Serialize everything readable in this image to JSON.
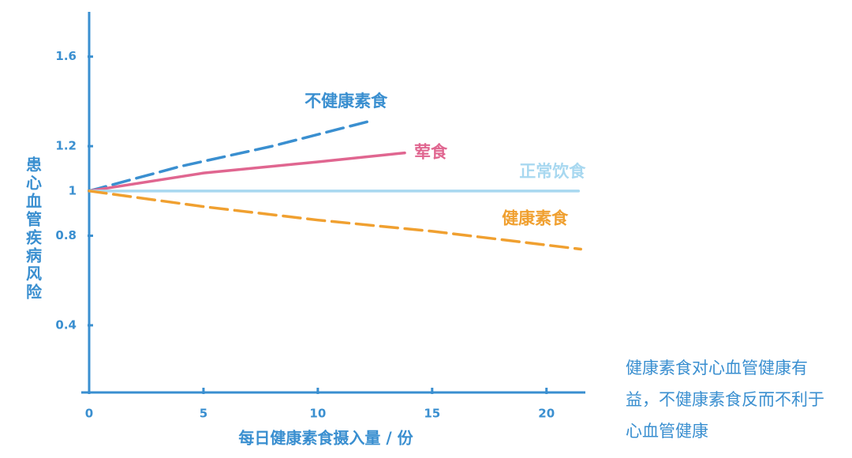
{
  "chart_data": {
    "type": "line",
    "y_label": "患心血管疾病风险",
    "x_label": "每日健康素食摄入量 / 份",
    "annotation": "健康素食对心血管健康有益，不健康素食反而不利于心血管健康",
    "xlim": [
      0,
      21.7
    ],
    "xticks": [
      0,
      5,
      10,
      15,
      20
    ],
    "ylim": [
      0.1,
      1.8
    ],
    "yticks": [
      0.4,
      0.8,
      1,
      1.2,
      1.6
    ],
    "axis_color": "#3a8fd0",
    "series": [
      {
        "name": "不健康素食",
        "color": "#3a8fd0",
        "dash": true,
        "x": [
          0,
          4,
          8,
          12.2
        ],
        "values": [
          1.0,
          1.11,
          1.2,
          1.31
        ]
      },
      {
        "name": "荤食",
        "color": "#e06690",
        "dash": false,
        "x": [
          0,
          5,
          10,
          13.8
        ],
        "values": [
          1.0,
          1.08,
          1.13,
          1.17
        ]
      },
      {
        "name": "正常饮食",
        "color": "#a8d8f0",
        "dash": false,
        "x": [
          0,
          21.4
        ],
        "values": [
          1.0,
          1.0
        ]
      },
      {
        "name": "健康素食",
        "color": "#f0a030",
        "dash": true,
        "x": [
          0,
          5,
          10,
          15,
          21.5
        ],
        "values": [
          1.0,
          0.93,
          0.87,
          0.82,
          0.74
        ]
      }
    ]
  }
}
